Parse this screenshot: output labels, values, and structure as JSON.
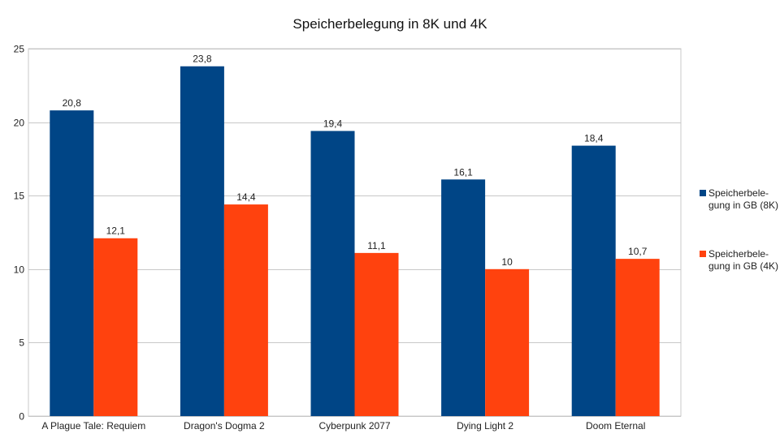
{
  "chart_data": {
    "type": "bar",
    "title": "Speicherbelegung in 8K und 4K",
    "categories": [
      "A Plague Tale: Requiem",
      "Dragon's Dogma 2",
      "Cyberpunk 2077",
      "Dying Light 2",
      "Doom Eternal"
    ],
    "series": [
      {
        "name": "Speicherbele-gung in GB (8K)",
        "name_lines": [
          "Speicherbele-",
          "gung in GB (8K)"
        ],
        "values": [
          20.8,
          23.8,
          19.4,
          16.1,
          18.4
        ],
        "labels": [
          "20,8",
          "23,8",
          "19,4",
          "16,1",
          "18,4"
        ],
        "color": "#004586"
      },
      {
        "name": "Speicherbele-gung in GB (4K)",
        "name_lines": [
          "Speicherbele-",
          "gung in GB (4K)"
        ],
        "values": [
          12.1,
          14.4,
          11.1,
          10,
          10.7
        ],
        "labels": [
          "12,1",
          "14,4",
          "11,1",
          "10",
          "10,7"
        ],
        "color": "#ff420e"
      }
    ],
    "yticks": [
      0,
      5,
      10,
      15,
      20,
      25
    ],
    "ylim": [
      0,
      25
    ],
    "grid": true,
    "legend_position": "right"
  }
}
